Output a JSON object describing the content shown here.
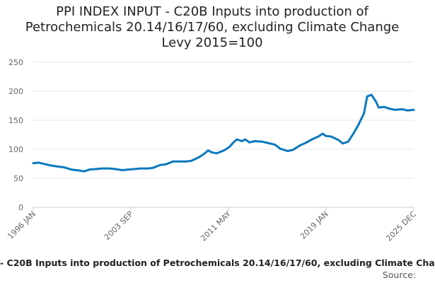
{
  "chart_data": {
    "type": "line",
    "title": "PPI INDEX INPUT - C20B Inputs into production of Petrochemicals 20.14/16/17/60, excluding Climate Change Levy 2015=100",
    "series": [
      {
        "name": "- C20B Inputs into production of Petrochemicals 20.14/16/17/60, excluding Climate Cha",
        "points": [
          [
            "1996-01",
            76
          ],
          [
            "1996-06",
            77
          ],
          [
            "1997-01",
            74
          ],
          [
            "1997-06",
            72
          ],
          [
            "1998-01",
            70
          ],
          [
            "1998-06",
            69
          ],
          [
            "1999-01",
            65
          ],
          [
            "1999-06",
            64
          ],
          [
            "2000-01",
            62
          ],
          [
            "2000-06",
            65
          ],
          [
            "2001-01",
            66
          ],
          [
            "2001-06",
            67
          ],
          [
            "2002-01",
            67
          ],
          [
            "2002-06",
            66
          ],
          [
            "2003-01",
            64
          ],
          [
            "2003-06",
            65
          ],
          [
            "2004-01",
            66
          ],
          [
            "2004-06",
            67
          ],
          [
            "2005-01",
            67
          ],
          [
            "2005-06",
            68
          ],
          [
            "2006-01",
            73
          ],
          [
            "2006-06",
            74
          ],
          [
            "2007-01",
            79
          ],
          [
            "2007-06",
            79
          ],
          [
            "2008-01",
            79
          ],
          [
            "2008-06",
            80
          ],
          [
            "2009-01",
            86
          ],
          [
            "2009-06",
            92
          ],
          [
            "2009-10",
            98
          ],
          [
            "2010-01",
            95
          ],
          [
            "2010-06",
            93
          ],
          [
            "2011-01",
            98
          ],
          [
            "2011-06",
            104
          ],
          [
            "2011-10",
            112
          ],
          [
            "2012-01",
            117
          ],
          [
            "2012-06",
            114
          ],
          [
            "2012-09",
            117
          ],
          [
            "2013-01",
            112
          ],
          [
            "2013-06",
            114
          ],
          [
            "2014-01",
            113
          ],
          [
            "2014-06",
            111
          ],
          [
            "2015-01",
            108
          ],
          [
            "2015-06",
            101
          ],
          [
            "2016-01",
            97
          ],
          [
            "2016-06",
            99
          ],
          [
            "2017-01",
            107
          ],
          [
            "2017-06",
            111
          ],
          [
            "2018-01",
            118
          ],
          [
            "2018-06",
            122
          ],
          [
            "2018-10",
            127
          ],
          [
            "2019-01",
            123
          ],
          [
            "2019-06",
            122
          ],
          [
            "2020-01",
            116
          ],
          [
            "2020-05",
            110
          ],
          [
            "2020-10",
            113
          ],
          [
            "2021-03",
            127
          ],
          [
            "2021-08",
            143
          ],
          [
            "2022-01",
            162
          ],
          [
            "2022-04",
            191
          ],
          [
            "2022-08",
            194
          ],
          [
            "2022-12",
            183
          ],
          [
            "2023-03",
            172
          ],
          [
            "2023-08",
            173
          ],
          [
            "2024-01",
            170
          ],
          [
            "2024-06",
            168
          ],
          [
            "2025-01",
            169
          ],
          [
            "2025-06",
            167
          ],
          [
            "2025-12",
            168
          ]
        ]
      }
    ],
    "x_ticks": [
      "1996 JAN",
      "2003 SEP",
      "2011 MAY",
      "2019 JAN",
      "2025 DEC"
    ],
    "x_range": [
      "1996-01",
      "2025-12"
    ],
    "y_ticks": [
      0,
      50,
      100,
      150,
      200,
      250
    ],
    "ylim": [
      0,
      250
    ],
    "grid": true,
    "line_color": "#0b79bf",
    "gridline_color": "#e6e6e6",
    "source_label": "Source:"
  }
}
